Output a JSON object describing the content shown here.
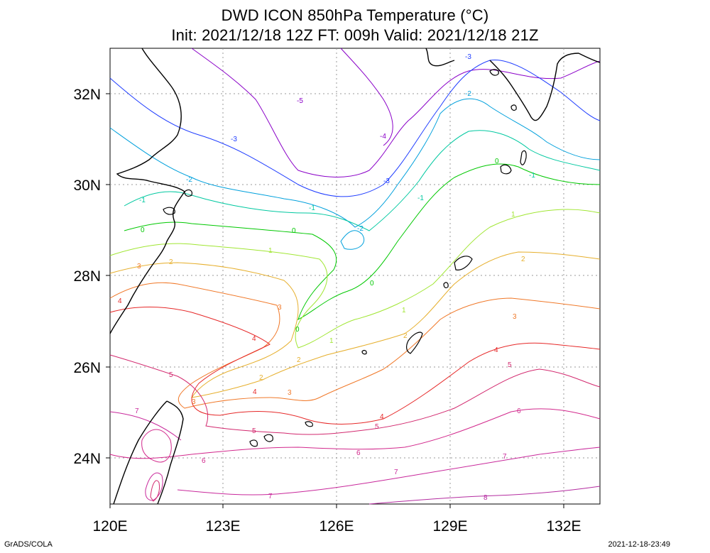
{
  "title": {
    "line1": "DWD ICON 850hPa Temperature (°C)",
    "line2": "Init: 2021/12/18 12Z  FT: 009h  Valid: 2021/12/18 21Z"
  },
  "axes": {
    "x_ticks": [
      "120E",
      "123E",
      "126E",
      "129E",
      "132E"
    ],
    "y_ticks": [
      "32N",
      "30N",
      "28N",
      "26N",
      "24N"
    ],
    "lon_range": [
      120,
      133
    ],
    "lat_range": [
      23,
      33
    ]
  },
  "footer": {
    "left": "GrADS/COLA",
    "right": "2021-12-18-23:49"
  },
  "contour_labels": [
    {
      "text": "-5",
      "color": "#8a00c8"
    },
    {
      "text": "-4",
      "color": "#8a00c8"
    },
    {
      "text": "-3",
      "color": "#1e3cff"
    },
    {
      "text": "-2",
      "color": "#00a0dc"
    },
    {
      "text": "-1",
      "color": "#00c8a0"
    },
    {
      "text": "0",
      "color": "#00c800"
    },
    {
      "text": "1",
      "color": "#a0e632"
    },
    {
      "text": "2",
      "color": "#e6af2d"
    },
    {
      "text": "3",
      "color": "#f07828"
    },
    {
      "text": "4",
      "color": "#e62828"
    },
    {
      "text": "5",
      "color": "#d2286e"
    },
    {
      "text": "6",
      "color": "#d2288c"
    },
    {
      "text": "7",
      "color": "#c8289b"
    },
    {
      "text": "8",
      "color": "#b42ca0"
    }
  ]
}
